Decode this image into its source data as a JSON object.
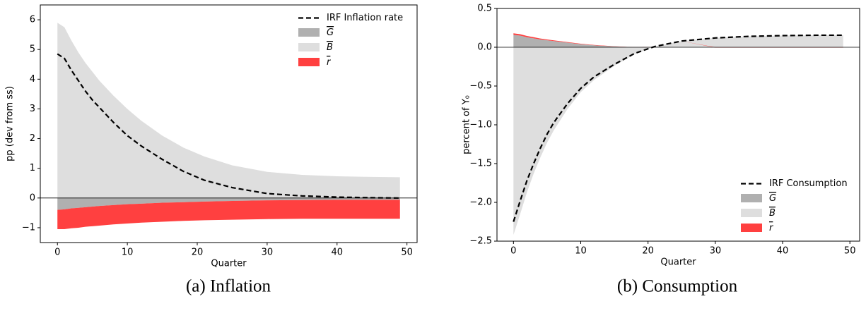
{
  "chart_data": [
    {
      "type": "stacked_area",
      "caption": "(a) Inflation",
      "xlabel": "Quarter",
      "ylabel": "pp (dev from ss)",
      "x": [
        0,
        1,
        2,
        3,
        4,
        5,
        6,
        8,
        10,
        12,
        15,
        18,
        21,
        25,
        30,
        35,
        40,
        45,
        49
      ],
      "line": {
        "name": "IRF Inflation rate",
        "color": "#000000",
        "values": [
          4.85,
          4.7,
          4.3,
          3.95,
          3.6,
          3.3,
          3.05,
          2.55,
          2.1,
          1.75,
          1.3,
          0.9,
          0.6,
          0.35,
          0.15,
          0.07,
          0.03,
          0.01,
          0.0
        ]
      },
      "series": [
        {
          "name": "G",
          "color": "#b0b0b0",
          "values": [
            -0.4,
            -0.38,
            -0.35,
            -0.33,
            -0.31,
            -0.29,
            -0.27,
            -0.24,
            -0.21,
            -0.19,
            -0.16,
            -0.14,
            -0.12,
            -0.1,
            -0.08,
            -0.07,
            -0.06,
            -0.06,
            -0.06
          ]
        },
        {
          "name": "B",
          "color": "#dedede",
          "values": [
            5.9,
            5.75,
            5.3,
            4.9,
            4.55,
            4.25,
            3.95,
            3.45,
            3.0,
            2.6,
            2.1,
            1.7,
            1.4,
            1.1,
            0.88,
            0.78,
            0.73,
            0.71,
            0.7
          ]
        },
        {
          "name": "r",
          "color": "#ff4040",
          "values": [
            -0.65,
            -0.67,
            -0.67,
            -0.67,
            -0.66,
            -0.66,
            -0.66,
            -0.65,
            -0.65,
            -0.64,
            -0.64,
            -0.63,
            -0.63,
            -0.63,
            -0.63,
            -0.63,
            -0.64,
            -0.64,
            -0.64
          ]
        }
      ],
      "xlim": [
        -2.45,
        51.45
      ],
      "xticks": [
        0,
        10,
        20,
        30,
        40,
        50
      ],
      "ylim": [
        -1.5,
        6.5
      ],
      "yticks": [
        {
          "value": -1,
          "label": "−1"
        },
        0,
        1,
        2,
        3,
        4,
        5,
        6
      ],
      "legend_loc": "upper right"
    },
    {
      "type": "stacked_area",
      "caption": "(b) Consumption",
      "xlabel": "Quarter",
      "ylabel": "percent of Y₀",
      "x": [
        0,
        1,
        2,
        3,
        4,
        5,
        6,
        8,
        10,
        12,
        15,
        18,
        21,
        25,
        30,
        35,
        40,
        45,
        49
      ],
      "line": {
        "name": "IRF Consumption",
        "color": "#000000",
        "values": [
          -2.25,
          -1.98,
          -1.72,
          -1.5,
          -1.3,
          -1.12,
          -0.97,
          -0.73,
          -0.53,
          -0.38,
          -0.22,
          -0.08,
          0.01,
          0.08,
          0.12,
          0.14,
          0.15,
          0.155,
          0.155
        ]
      },
      "series": [
        {
          "name": "G",
          "color": "#b0b0b0",
          "values": [
            0.16,
            0.15,
            0.13,
            0.115,
            0.1,
            0.09,
            0.08,
            0.06,
            0.04,
            0.025,
            0.01,
            0,
            0,
            0,
            0,
            0,
            0,
            0,
            0
          ]
        },
        {
          "name": "B",
          "color": "#dedede",
          "values": [
            -2.42,
            -2.15,
            -1.87,
            -1.63,
            -1.42,
            -1.23,
            -1.07,
            -0.8,
            -0.58,
            -0.42,
            -0.24,
            -0.09,
            0.01,
            0.08,
            0.12,
            0.14,
            0.15,
            0.155,
            0.155
          ]
        },
        {
          "name": "r",
          "color": "#ff4040",
          "values": [
            0.02,
            0.018,
            0.016,
            0.014,
            0.012,
            0.01,
            0.009,
            0.007,
            0.005,
            0.004,
            0.002,
            0.001,
            0,
            0,
            -0.005,
            -0.005,
            -0.005,
            -0.005,
            -0.005
          ]
        }
      ],
      "xlim": [
        -2.45,
        51.45
      ],
      "xticks": [
        0,
        10,
        20,
        30,
        40,
        50
      ],
      "ylim": [
        -2.5,
        0.5
      ],
      "yticks": [
        {
          "value": -2.5,
          "label": "−2.5"
        },
        {
          "value": -2.0,
          "label": "−2.0"
        },
        {
          "value": -1.5,
          "label": "−1.5"
        },
        {
          "value": -1.0,
          "label": "−1.0"
        },
        {
          "value": -0.5,
          "label": "−0.5"
        },
        {
          "value": 0,
          "label": "0.0"
        },
        0.5
      ],
      "legend_loc": "lower right"
    }
  ]
}
